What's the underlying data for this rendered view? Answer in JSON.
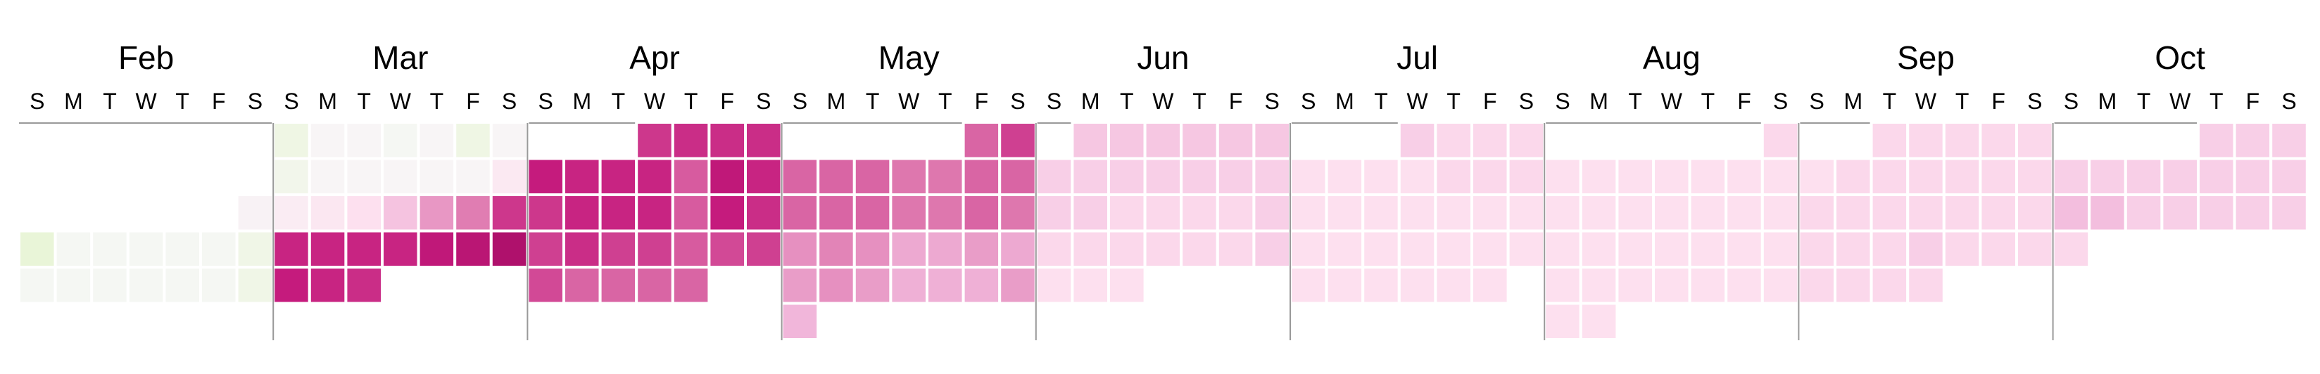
{
  "chart_data": {
    "type": "heatmap",
    "layout": "calendar",
    "day_of_week_labels": [
      "S",
      "M",
      "T",
      "W",
      "T",
      "F",
      "S"
    ],
    "months": [
      {
        "label": "Feb",
        "cells": [
          [
            null,
            null,
            null,
            null,
            null,
            null,
            null
          ],
          [
            null,
            null,
            null,
            null,
            null,
            null,
            null
          ],
          [
            null,
            null,
            null,
            null,
            null,
            null,
            0.52
          ],
          [
            0.42,
            0.49,
            0.49,
            0.49,
            0.49,
            0.49,
            0.46
          ],
          [
            0.49,
            0.49,
            0.49,
            0.49,
            0.49,
            0.49,
            0.46
          ]
        ]
      },
      {
        "label": "Mar",
        "cells": [
          [
            0.45,
            0.51,
            0.51,
            0.49,
            0.51,
            0.45,
            0.51
          ],
          [
            0.47,
            0.51,
            0.51,
            0.51,
            0.51,
            0.51,
            0.56
          ],
          [
            0.55,
            0.57,
            0.6,
            0.67,
            0.75,
            0.79,
            0.87
          ],
          [
            0.89,
            0.89,
            0.89,
            0.89,
            0.91,
            0.92,
            0.94
          ],
          [
            0.9,
            0.89,
            0.88,
            null,
            null,
            null,
            null
          ]
        ]
      },
      {
        "label": "Apr",
        "cells": [
          [
            null,
            null,
            null,
            0.87,
            0.88,
            0.88,
            0.88
          ],
          [
            0.9,
            0.89,
            0.89,
            0.89,
            0.83,
            0.91,
            0.89
          ],
          [
            0.87,
            0.89,
            0.89,
            0.89,
            0.83,
            0.9,
            0.88
          ],
          [
            0.86,
            0.88,
            0.86,
            0.86,
            0.83,
            0.85,
            0.86
          ],
          [
            0.85,
            0.82,
            0.82,
            0.82,
            0.82,
            null,
            null
          ]
        ]
      },
      {
        "label": "May",
        "cells": [
          [
            null,
            null,
            null,
            null,
            null,
            0.82,
            0.86
          ],
          [
            0.82,
            0.82,
            0.82,
            0.8,
            0.8,
            0.82,
            0.82
          ],
          [
            0.82,
            0.82,
            0.82,
            0.8,
            0.8,
            0.82,
            0.8
          ],
          [
            0.76,
            0.78,
            0.76,
            0.72,
            0.72,
            0.74,
            0.72
          ],
          [
            0.74,
            0.76,
            0.74,
            0.71,
            0.71,
            0.71,
            0.74
          ],
          [
            0.7,
            null,
            null,
            null,
            null,
            null,
            null
          ]
        ]
      },
      {
        "label": "Jun",
        "cells": [
          [
            null,
            0.66,
            0.66,
            0.66,
            0.66,
            0.66,
            0.66
          ],
          [
            0.64,
            0.64,
            0.64,
            0.64,
            0.64,
            0.64,
            0.64
          ],
          [
            0.64,
            0.64,
            0.62,
            0.62,
            0.62,
            0.62,
            0.64
          ],
          [
            0.62,
            0.62,
            0.62,
            0.62,
            0.62,
            0.62,
            0.64
          ],
          [
            0.6,
            0.6,
            0.6,
            null,
            null,
            null,
            null
          ]
        ]
      },
      {
        "label": "Jul",
        "cells": [
          [
            null,
            null,
            null,
            0.64,
            0.62,
            0.62,
            0.62
          ],
          [
            0.6,
            0.6,
            0.6,
            0.6,
            0.62,
            0.62,
            0.62
          ],
          [
            0.6,
            0.6,
            0.6,
            0.6,
            0.6,
            0.6,
            0.6
          ],
          [
            0.6,
            0.6,
            0.6,
            0.6,
            0.6,
            0.6,
            0.6
          ],
          [
            0.6,
            0.6,
            0.6,
            0.6,
            0.6,
            0.6,
            null
          ]
        ]
      },
      {
        "label": "Aug",
        "cells": [
          [
            null,
            null,
            null,
            null,
            null,
            null,
            0.62
          ],
          [
            0.6,
            0.6,
            0.6,
            0.6,
            0.6,
            0.6,
            0.6
          ],
          [
            0.6,
            0.6,
            0.6,
            0.6,
            0.6,
            0.6,
            0.6
          ],
          [
            0.6,
            0.6,
            0.6,
            0.6,
            0.6,
            0.6,
            0.6
          ],
          [
            0.6,
            0.6,
            0.6,
            0.6,
            0.6,
            0.6,
            0.6
          ],
          [
            0.6,
            0.6,
            null,
            null,
            null,
            null,
            null
          ]
        ]
      },
      {
        "label": "Sep",
        "cells": [
          [
            null,
            null,
            0.62,
            0.62,
            0.62,
            0.62,
            0.62
          ],
          [
            0.6,
            0.62,
            0.62,
            0.62,
            0.62,
            0.62,
            0.62
          ],
          [
            0.62,
            0.62,
            0.62,
            0.62,
            0.62,
            0.62,
            0.62
          ],
          [
            0.62,
            0.62,
            0.62,
            0.64,
            0.62,
            0.62,
            0.62
          ],
          [
            0.62,
            0.62,
            0.62,
            0.62,
            null,
            null,
            null
          ]
        ]
      },
      {
        "label": "Oct",
        "cells": [
          [
            null,
            null,
            null,
            null,
            0.64,
            0.64,
            0.64
          ],
          [
            0.64,
            0.64,
            0.64,
            0.64,
            0.64,
            0.64,
            0.64
          ],
          [
            0.68,
            0.68,
            0.64,
            0.64,
            0.64,
            0.64,
            0.64
          ],
          [
            0.62,
            null,
            null,
            null,
            null,
            null,
            null
          ]
        ]
      }
    ],
    "colors": {
      "scale": [
        "#276419",
        "#4d9221",
        "#7fbc41",
        "#b8e186",
        "#e6f5d0",
        "#f7f7f7",
        "#fde0ef",
        "#f1b6da",
        "#de77ae",
        "#c51b7d",
        "#8e0152"
      ],
      "separator": "#999999"
    }
  }
}
